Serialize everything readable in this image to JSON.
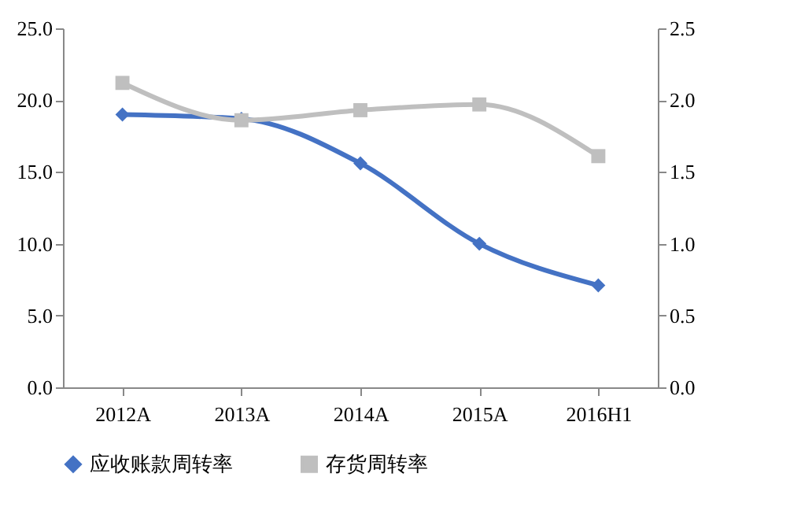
{
  "chart_data": {
    "type": "line",
    "categories": [
      "2012A",
      "2013A",
      "2014A",
      "2015A",
      "2016H1"
    ],
    "series": [
      {
        "name": "应收账款周转率",
        "color": "#4472c4",
        "marker": "diamond",
        "values": [
          19.0,
          18.7,
          15.6,
          10.0,
          7.1
        ]
      },
      {
        "name": "存货周转率",
        "color": "#bfbfbf",
        "marker": "square",
        "axis": "y2",
        "values": [
          2.12,
          1.86,
          1.93,
          1.97,
          1.61
        ]
      }
    ],
    "ylim": [
      0,
      25
    ],
    "yticks": [
      {
        "value": 0,
        "label": "0.0"
      },
      {
        "value": 5,
        "label": "5.0"
      },
      {
        "value": 10,
        "label": "10.0"
      },
      {
        "value": 15,
        "label": "15.0"
      },
      {
        "value": 20,
        "label": "20.0"
      },
      {
        "value": 25,
        "label": "25.0"
      }
    ],
    "y2lim": [
      0,
      2.5
    ],
    "y2ticks": [
      {
        "value": 0,
        "label": "0.0"
      },
      {
        "value": 0.5,
        "label": "0.5"
      },
      {
        "value": 1,
        "label": "1.0"
      },
      {
        "value": 1.5,
        "label": "1.5"
      },
      {
        "value": 2,
        "label": "2.0"
      },
      {
        "value": 2.5,
        "label": "2.5"
      }
    ],
    "grid": false,
    "legend": "bottom"
  }
}
